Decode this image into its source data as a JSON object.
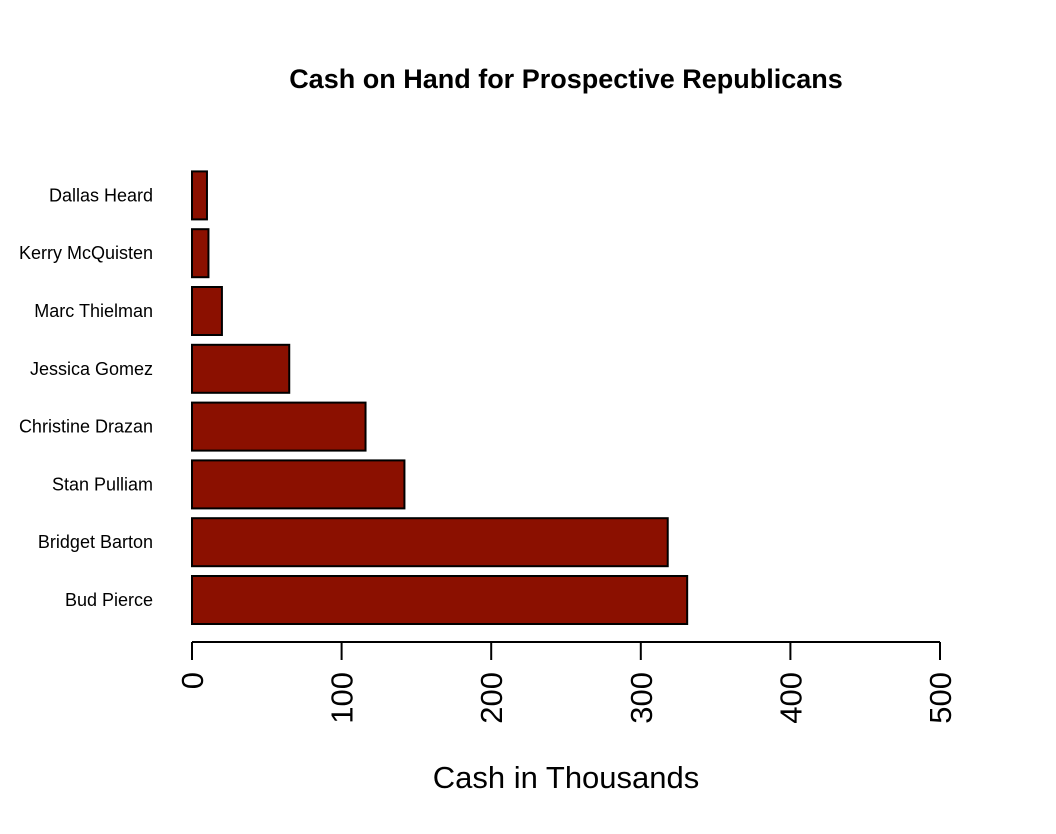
{
  "chart_data": {
    "type": "bar",
    "orientation": "horizontal",
    "title": "Cash on Hand for Prospective Republicans",
    "xlabel": "Cash in Thousands",
    "ylabel": "",
    "categories": [
      "Bud Pierce",
      "Bridget Barton",
      "Stan Pulliam",
      "Christine Drazan",
      "Jessica Gomez",
      "Marc Thielman",
      "Kerry McQuisten",
      "Dallas Heard"
    ],
    "values": [
      331,
      318,
      142,
      116,
      65,
      20,
      11,
      10
    ],
    "xlim": [
      0,
      500
    ],
    "xticks": [
      "0",
      "100",
      "200",
      "300",
      "400",
      "500"
    ],
    "bar_color": "#8b1000",
    "grid": false,
    "legend": "none"
  }
}
